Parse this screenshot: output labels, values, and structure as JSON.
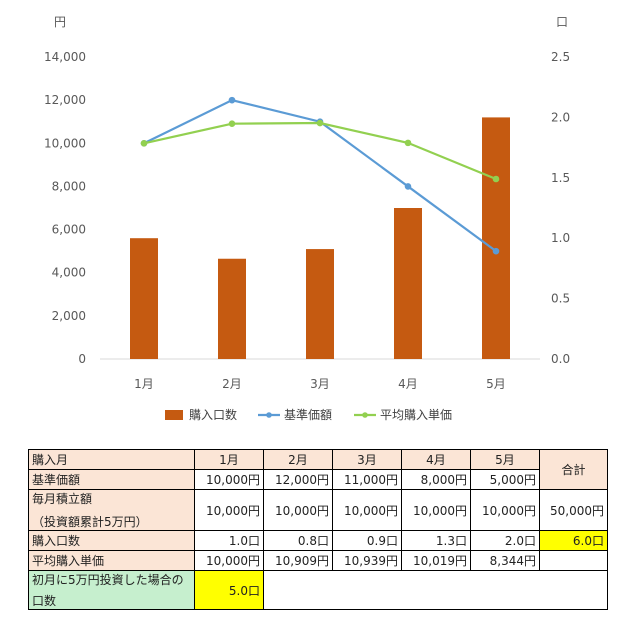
{
  "chart_data": {
    "type": "bar+line",
    "categories": [
      "1月",
      "2月",
      "3月",
      "4月",
      "5月"
    ],
    "y_left": {
      "unit_label": "円",
      "min": 0,
      "max": 14000,
      "ticks": [
        "0",
        "2,000",
        "4,000",
        "6,000",
        "8,000",
        "10,000",
        "12,000",
        "14,000"
      ]
    },
    "y_right": {
      "unit_label": "口",
      "min": 0,
      "max": 2.5,
      "ticks": [
        "0.0",
        "0.5",
        "1.0",
        "1.5",
        "2.0",
        "2.5"
      ]
    },
    "series": [
      {
        "name": "購入口数",
        "type": "bar",
        "axis": "right",
        "color": "#c55a11",
        "values": [
          1.0,
          0.83,
          0.91,
          1.25,
          2.0
        ]
      },
      {
        "name": "基準価額",
        "type": "line",
        "axis": "left",
        "color": "#5b9bd5",
        "values": [
          10000,
          12000,
          11000,
          8000,
          5000
        ]
      },
      {
        "name": "平均購入単価",
        "type": "line",
        "axis": "left",
        "color": "#92d050",
        "values": [
          10000,
          10909,
          10939,
          10019,
          8344
        ]
      }
    ],
    "legend_position": "bottom",
    "grid": false
  },
  "table": {
    "header_label": "購入月",
    "months": [
      "1月",
      "2月",
      "3月",
      "4月",
      "5月"
    ],
    "total_label": "合計",
    "rows": {
      "base_price": {
        "label": "基準価額",
        "values": [
          "10,000円",
          "12,000円",
          "11,000円",
          "8,000円",
          "5,000円"
        ]
      },
      "monthly": {
        "label1": "毎月積立額",
        "label2": "（投資額累計5万円）",
        "values": [
          "10,000円",
          "10,000円",
          "10,000円",
          "10,000円",
          "10,000円"
        ],
        "total": "50,000円"
      },
      "units": {
        "label": "購入口数",
        "values": [
          "1.0口",
          "0.8口",
          "0.9口",
          "1.3口",
          "2.0口"
        ],
        "total": "6.0口"
      },
      "avg_price": {
        "label": "平均購入単価",
        "values": [
          "10,000円",
          "10,909円",
          "10,939円",
          "10,019円",
          "8,344円"
        ]
      },
      "lump": {
        "label1": "初月に5万円投資した場合の",
        "label2": "口数",
        "value": "5.0口"
      }
    }
  }
}
